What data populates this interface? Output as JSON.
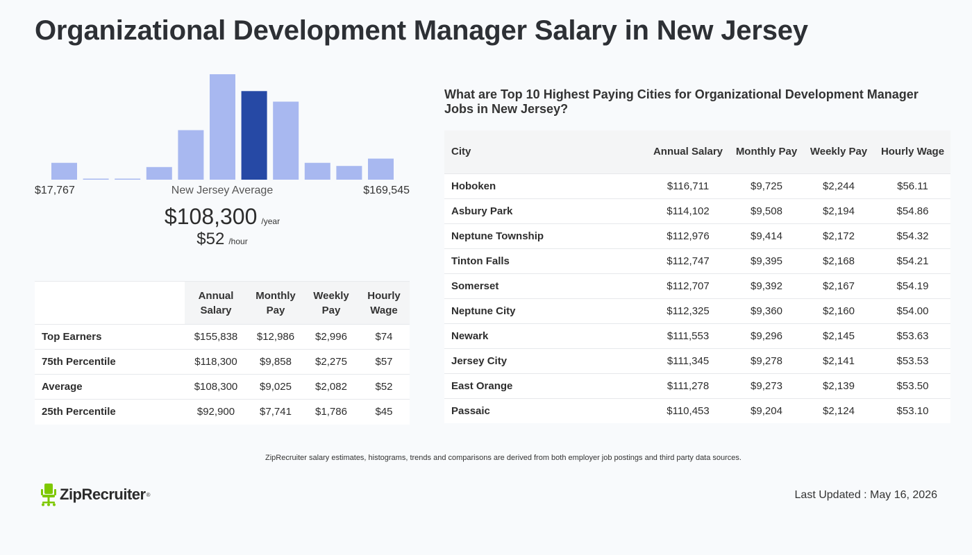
{
  "page": {
    "title": "Organizational Development Manager Salary in New Jersey"
  },
  "histogram": {
    "min_label": "$17,767",
    "mid_label": "New Jersey Average",
    "max_label": "$169,545",
    "avg_year": "$108,300",
    "year_unit": "/year",
    "avg_hour": "$52",
    "hour_unit": "/hour",
    "bar_color": "#a8b8f0",
    "highlight_color": "#2649a5"
  },
  "chart_data": {
    "type": "bar",
    "categories": [
      "1",
      "2",
      "3",
      "4",
      "5",
      "6",
      "7",
      "8",
      "9",
      "10",
      "11"
    ],
    "values": [
      16,
      1,
      1,
      12,
      47,
      100,
      84,
      74,
      16,
      13,
      20
    ],
    "highlight_index": 6,
    "ylim": [
      0,
      100
    ],
    "title": "",
    "xlabel": "",
    "ylabel": "",
    "grid": false
  },
  "percentile_table": {
    "headers": [
      "Annual Salary",
      "Monthly Pay",
      "Weekly Pay",
      "Hourly Wage"
    ],
    "rows": [
      {
        "label": "Top Earners",
        "annual": "$155,838",
        "monthly": "$12,986",
        "weekly": "$2,996",
        "hourly": "$74"
      },
      {
        "label": "75th Percentile",
        "annual": "$118,300",
        "monthly": "$9,858",
        "weekly": "$2,275",
        "hourly": "$57"
      },
      {
        "label": "Average",
        "annual": "$108,300",
        "monthly": "$9,025",
        "weekly": "$2,082",
        "hourly": "$52"
      },
      {
        "label": "25th Percentile",
        "annual": "$92,900",
        "monthly": "$7,741",
        "weekly": "$1,786",
        "hourly": "$45"
      }
    ]
  },
  "cities": {
    "title": "What are Top 10 Highest Paying Cities for Organizational Development Manager Jobs in New Jersey?",
    "headers": [
      "City",
      "Annual Salary",
      "Monthly Pay",
      "Weekly Pay",
      "Hourly Wage"
    ],
    "rows": [
      {
        "city": "Hoboken",
        "annual": "$116,711",
        "monthly": "$9,725",
        "weekly": "$2,244",
        "hourly": "$56.11"
      },
      {
        "city": "Asbury Park",
        "annual": "$114,102",
        "monthly": "$9,508",
        "weekly": "$2,194",
        "hourly": "$54.86"
      },
      {
        "city": "Neptune Township",
        "annual": "$112,976",
        "monthly": "$9,414",
        "weekly": "$2,172",
        "hourly": "$54.32"
      },
      {
        "city": "Tinton Falls",
        "annual": "$112,747",
        "monthly": "$9,395",
        "weekly": "$2,168",
        "hourly": "$54.21"
      },
      {
        "city": "Somerset",
        "annual": "$112,707",
        "monthly": "$9,392",
        "weekly": "$2,167",
        "hourly": "$54.19"
      },
      {
        "city": "Neptune City",
        "annual": "$112,325",
        "monthly": "$9,360",
        "weekly": "$2,160",
        "hourly": "$54.00"
      },
      {
        "city": "Newark",
        "annual": "$111,553",
        "monthly": "$9,296",
        "weekly": "$2,145",
        "hourly": "$53.63"
      },
      {
        "city": "Jersey City",
        "annual": "$111,345",
        "monthly": "$9,278",
        "weekly": "$2,141",
        "hourly": "$53.53"
      },
      {
        "city": "East Orange",
        "annual": "$111,278",
        "monthly": "$9,273",
        "weekly": "$2,139",
        "hourly": "$53.50"
      },
      {
        "city": "Passaic",
        "annual": "$110,453",
        "monthly": "$9,204",
        "weekly": "$2,124",
        "hourly": "$53.10"
      }
    ]
  },
  "footer": {
    "disclaimer": "ZipRecruiter salary estimates, histograms, trends and comparisons are derived from both employer job postings and third party data sources.",
    "logo_text": "ZipRecruiter",
    "logo_icon": "chair-icon",
    "logo_color": "#7ec800",
    "last_updated": "Last Updated : May 16, 2026"
  }
}
